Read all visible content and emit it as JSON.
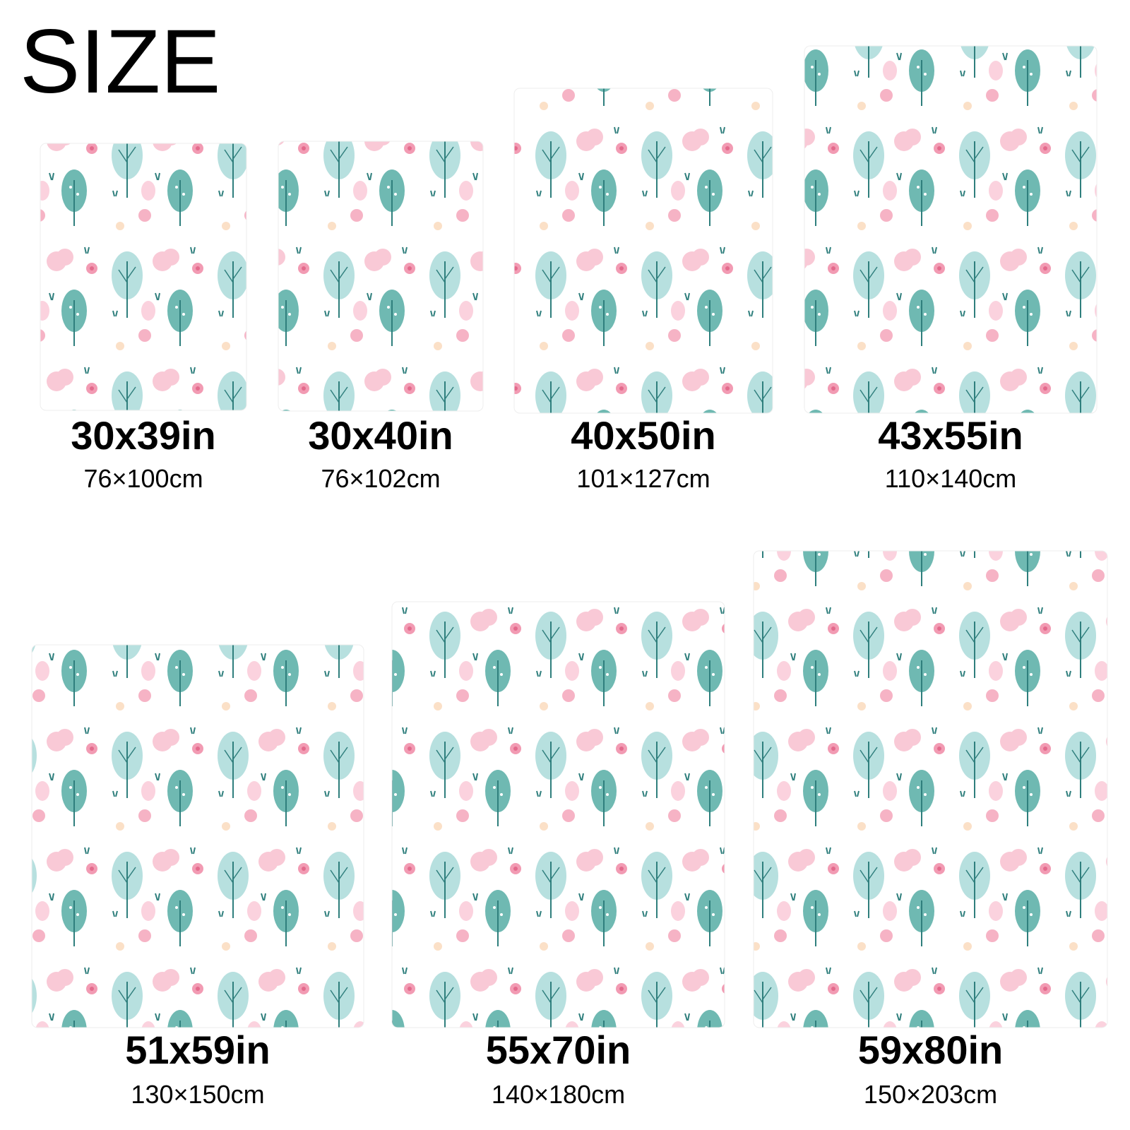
{
  "header": {
    "title": "SIZE"
  },
  "sizes": [
    {
      "inches": "30x39in",
      "cm": "76×100cm"
    },
    {
      "inches": "30x40in",
      "cm": "76×102cm"
    },
    {
      "inches": "40x50in",
      "cm": "101×127cm"
    },
    {
      "inches": "43x55in",
      "cm": "110×140cm"
    },
    {
      "inches": "51x59in",
      "cm": "130×150cm"
    },
    {
      "inches": "55x70in",
      "cm": "140×180cm"
    },
    {
      "inches": "59x80in",
      "cm": "150×203cm"
    }
  ]
}
